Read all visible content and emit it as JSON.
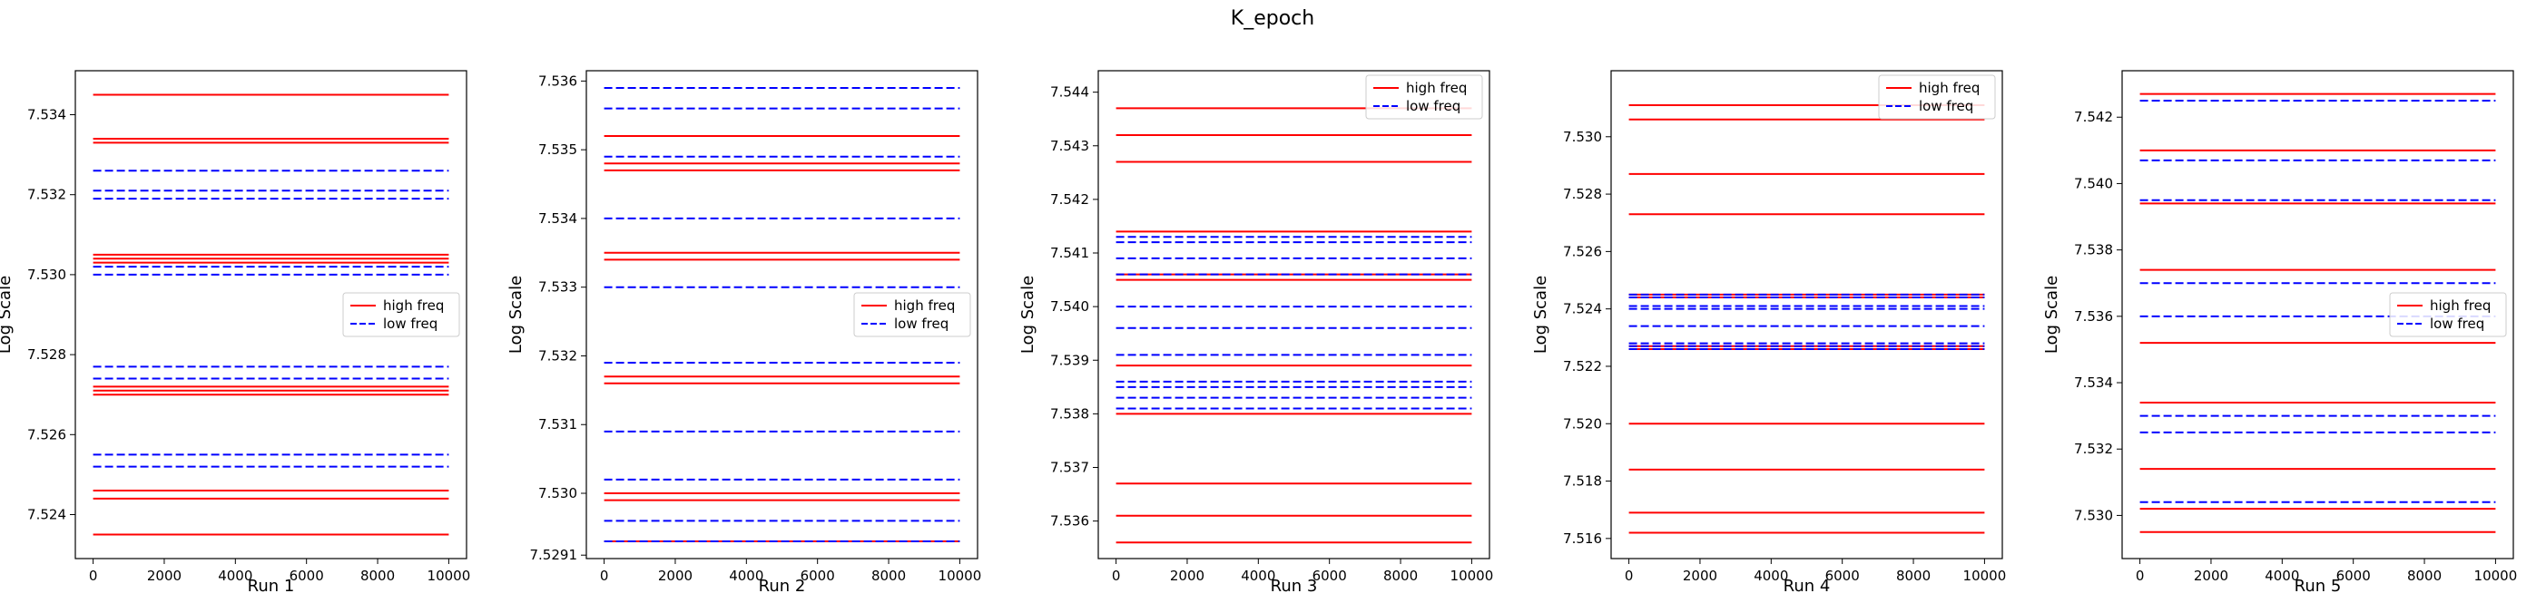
{
  "figure": {
    "title": "K_epoch"
  },
  "legend_labels": [
    "high freq",
    "low freq"
  ],
  "colors": {
    "high": "#ff0000",
    "low": "#0000ff"
  },
  "chart_data": [
    {
      "type": "line",
      "xlabel": "Run 1",
      "ylabel": "Log Scale",
      "xlim": [
        -500,
        10500
      ],
      "ylim": [
        7.5229,
        7.5351
      ],
      "x": [
        0,
        10000
      ],
      "xticks": [
        0,
        2000,
        4000,
        6000,
        8000,
        10000
      ],
      "yticks": [
        7.524,
        7.526,
        7.528,
        7.53,
        7.532,
        7.534
      ],
      "ytick_labels": [
        "7.524",
        "7.526",
        "7.528",
        "7.530",
        "7.532",
        "7.534"
      ],
      "legend": "center-right",
      "series": [
        {
          "name": "high freq",
          "style": "solid",
          "levels": [
            7.5345,
            7.5334,
            7.5333,
            7.5305,
            7.5304,
            7.5303,
            7.5272,
            7.5271,
            7.527,
            7.5246,
            7.5244,
            7.5235
          ]
        },
        {
          "name": "low freq",
          "style": "dashed",
          "levels": [
            7.5326,
            7.5321,
            7.5319,
            7.5302,
            7.53,
            7.5277,
            7.5274,
            7.5255,
            7.5252
          ]
        }
      ]
    },
    {
      "type": "line",
      "xlabel": "Run 2",
      "ylabel": "Log Scale",
      "xlim": [
        -500,
        10500
      ],
      "ylim": [
        7.52905,
        7.53615
      ],
      "x": [
        0,
        10000
      ],
      "xticks": [
        0,
        2000,
        4000,
        6000,
        8000,
        10000
      ],
      "yticks": [
        7.5291,
        7.53,
        7.531,
        7.532,
        7.533,
        7.534,
        7.535,
        7.536
      ],
      "ytick_labels": [
        "7.5291",
        "7.530",
        "7.531",
        "7.532",
        "7.533",
        "7.534",
        "7.535",
        "7.536"
      ],
      "legend": "center-right",
      "series": [
        {
          "name": "high freq",
          "style": "solid",
          "levels": [
            7.5352,
            7.5348,
            7.5347,
            7.5335,
            7.5334,
            7.5317,
            7.5316,
            7.53,
            7.5299,
            7.5293
          ]
        },
        {
          "name": "low freq",
          "style": "dashed",
          "levels": [
            7.5359,
            7.5356,
            7.5349,
            7.534,
            7.533,
            7.5319,
            7.5309,
            7.5302,
            7.5296,
            7.5293
          ]
        }
      ]
    },
    {
      "type": "line",
      "xlabel": "Run 3",
      "ylabel": "Log Scale",
      "xlim": [
        -500,
        10500
      ],
      "ylim": [
        7.5353,
        7.5444
      ],
      "x": [
        0,
        10000
      ],
      "xticks": [
        0,
        2000,
        4000,
        6000,
        8000,
        10000
      ],
      "yticks": [
        7.536,
        7.537,
        7.538,
        7.539,
        7.54,
        7.541,
        7.542,
        7.543,
        7.544
      ],
      "ytick_labels": [
        "7.536",
        "7.537",
        "7.538",
        "7.539",
        "7.540",
        "7.541",
        "7.542",
        "7.543",
        "7.544"
      ],
      "legend": "top-right",
      "series": [
        {
          "name": "high freq",
          "style": "solid",
          "levels": [
            7.5437,
            7.5432,
            7.5427,
            7.5414,
            7.5406,
            7.5405,
            7.5389,
            7.538,
            7.5367,
            7.5361,
            7.5356
          ]
        },
        {
          "name": "low freq",
          "style": "dashed",
          "levels": [
            7.5413,
            7.5412,
            7.5409,
            7.5406,
            7.54,
            7.5396,
            7.5391,
            7.5386,
            7.5385,
            7.5383,
            7.5381
          ]
        }
      ]
    },
    {
      "type": "line",
      "xlabel": "Run 4",
      "ylabel": "Log Scale",
      "xlim": [
        -500,
        10500
      ],
      "ylim": [
        7.5153,
        7.5323
      ],
      "x": [
        0,
        10000
      ],
      "xticks": [
        0,
        2000,
        4000,
        6000,
        8000,
        10000
      ],
      "yticks": [
        7.516,
        7.518,
        7.52,
        7.522,
        7.524,
        7.526,
        7.528,
        7.53
      ],
      "ytick_labels": [
        "7.516",
        "7.518",
        "7.520",
        "7.522",
        "7.524",
        "7.526",
        "7.528",
        "7.530"
      ],
      "legend": "top-right",
      "series": [
        {
          "name": "high freq",
          "style": "solid",
          "levels": [
            7.5311,
            7.5306,
            7.5287,
            7.5273,
            7.5245,
            7.5244,
            7.5227,
            7.5226,
            7.52,
            7.5184,
            7.5169,
            7.5162
          ]
        },
        {
          "name": "low freq",
          "style": "dashed",
          "levels": [
            7.5245,
            7.5244,
            7.5241,
            7.524,
            7.5234,
            7.5228,
            7.5227,
            7.5226
          ]
        }
      ]
    },
    {
      "type": "line",
      "xlabel": "Run 5",
      "ylabel": "Log Scale",
      "xlim": [
        -500,
        10500
      ],
      "ylim": [
        7.5287,
        7.5434
      ],
      "x": [
        0,
        10000
      ],
      "xticks": [
        0,
        2000,
        4000,
        6000,
        8000,
        10000
      ],
      "yticks": [
        7.53,
        7.532,
        7.534,
        7.536,
        7.538,
        7.54,
        7.542
      ],
      "ytick_labels": [
        "7.530",
        "7.532",
        "7.534",
        "7.536",
        "7.538",
        "7.540",
        "7.542"
      ],
      "legend": "center-right",
      "series": [
        {
          "name": "high freq",
          "style": "solid",
          "levels": [
            7.5427,
            7.541,
            7.5394,
            7.5374,
            7.5352,
            7.5334,
            7.5314,
            7.5302,
            7.5295
          ]
        },
        {
          "name": "low freq",
          "style": "dashed",
          "levels": [
            7.5425,
            7.5407,
            7.5395,
            7.537,
            7.536,
            7.533,
            7.5325,
            7.5304
          ]
        }
      ]
    }
  ]
}
